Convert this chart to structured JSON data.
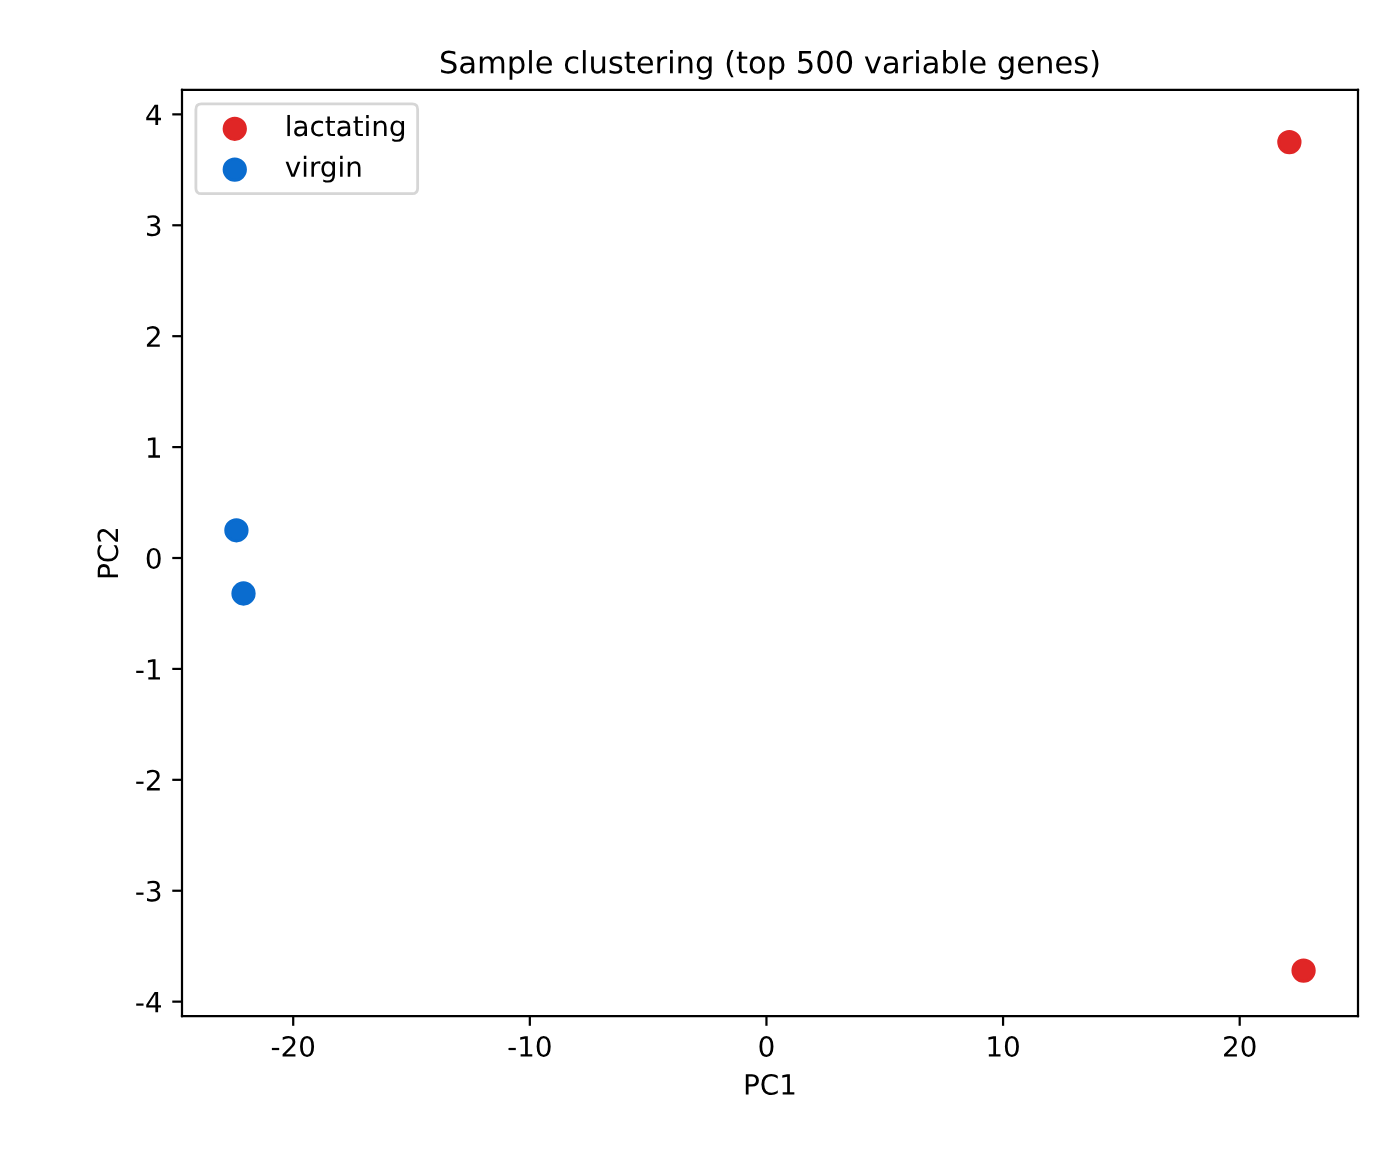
{
  "chart_data": {
    "type": "scatter",
    "title": "Sample clustering (top 500 variable genes)",
    "xlabel": "PC1",
    "ylabel": "PC2",
    "series": [
      {
        "name": "lactating",
        "color": "#e02626",
        "x": [
          22.1,
          22.7
        ],
        "values": [
          3.75,
          -3.72
        ]
      },
      {
        "name": "virgin",
        "color": "#0a6ccf",
        "x": [
          -22.4,
          -22.1
        ],
        "values": [
          0.25,
          -0.32
        ]
      }
    ],
    "xlim": [
      -24.7,
      25.0
    ],
    "ylim": [
      -4.13,
      4.22
    ],
    "xticks": [
      -20,
      -10,
      0,
      10,
      20
    ],
    "yticks": [
      -4,
      -3,
      -2,
      -1,
      0,
      1,
      2,
      3,
      4
    ],
    "legend": "top left",
    "marker": "circle",
    "grid": false
  }
}
